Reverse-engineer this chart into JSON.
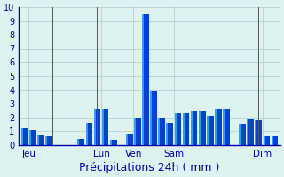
{
  "title": "",
  "xlabel": "Précipitations 24h ( mm )",
  "ylabel": "",
  "background_color": "#dff2f2",
  "bar_color": "#0044cc",
  "bar_color2": "#3399ff",
  "ylim": [
    0,
    10
  ],
  "yticks": [
    0,
    1,
    2,
    3,
    4,
    5,
    6,
    7,
    8,
    9,
    10
  ],
  "values": [
    1.2,
    1.1,
    0.7,
    0.6,
    0.0,
    0.0,
    0.0,
    0.45,
    1.6,
    2.6,
    2.6,
    0.35,
    0.0,
    0.8,
    2.0,
    9.5,
    3.9,
    2.0,
    1.6,
    2.3,
    2.3,
    2.5,
    2.5,
    2.1,
    2.6,
    2.6,
    0.0,
    1.5,
    1.9,
    1.8,
    0.65,
    0.6
  ],
  "day_labels": [
    "Jeu",
    "Lun",
    "Ven",
    "Sam",
    "Dim"
  ],
  "day_positions": [
    0.5,
    9.5,
    13.5,
    18.5,
    29.5
  ],
  "vline_positions": [
    3.5,
    9.0,
    13.0,
    18.0,
    29.0
  ],
  "grid_color": "#aacccc",
  "tick_color": "#0000aa",
  "xlabel_color": "#0000aa",
  "xlabel_fontsize": 9
}
